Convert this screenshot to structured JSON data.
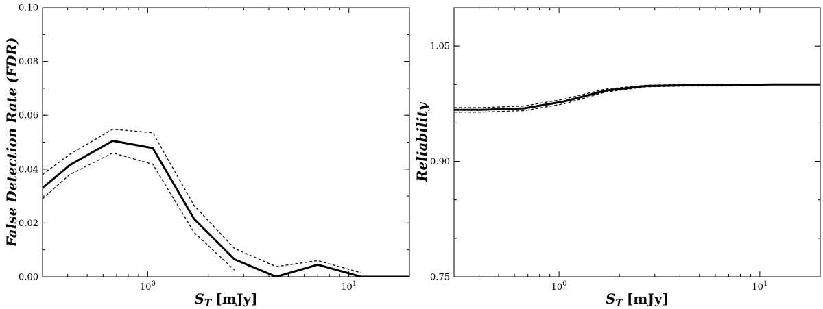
{
  "chart_data": [
    {
      "type": "line",
      "xscale": "log",
      "xlim": [
        0.3,
        20
      ],
      "ylim": [
        0.0,
        0.1
      ],
      "xlabel_symbol": "S",
      "xlabel_sub": "T",
      "xlabel_unit": "[mJy]",
      "ylabel": "False Detection Rate",
      "ylabel_abbr": "(FDR)",
      "xtick_major": [
        {
          "v": 1,
          "base": "10",
          "exp": "0"
        },
        {
          "v": 10,
          "base": "10",
          "exp": "1"
        }
      ],
      "ytick_major": [
        {
          "v": 0.0,
          "label": "0.00"
        },
        {
          "v": 0.02,
          "label": "0.02"
        },
        {
          "v": 0.04,
          "label": "0.04"
        },
        {
          "v": 0.06,
          "label": "0.06"
        },
        {
          "v": 0.08,
          "label": "0.08"
        },
        {
          "v": 0.1,
          "label": "0.10"
        }
      ],
      "ytick_minor_step": 0.01,
      "x": [
        0.3,
        0.41,
        0.67,
        1.06,
        1.7,
        2.7,
        4.35,
        7.0,
        11.5,
        20.0
      ],
      "series": [
        {
          "style": "solid",
          "values": [
            0.033,
            0.0415,
            0.0505,
            0.0478,
            0.0215,
            0.0065,
            0.0,
            0.0045,
            0.0,
            0.0
          ]
        },
        {
          "style": "dashed",
          "values": [
            0.038,
            0.0455,
            0.0548,
            0.0535,
            0.0265,
            0.0105,
            0.0038,
            0.006,
            0.0015,
            null
          ]
        },
        {
          "style": "dashed",
          "values": [
            0.029,
            0.038,
            0.046,
            0.0418,
            0.0165,
            0.0025,
            null,
            0.003,
            null,
            null
          ]
        }
      ]
    },
    {
      "type": "line",
      "xscale": "log",
      "xlim": [
        0.3,
        20
      ],
      "ylim": [
        0.75,
        1.1
      ],
      "xlabel_symbol": "S",
      "xlabel_sub": "T",
      "xlabel_unit": "[mJy]",
      "ylabel": "Reliability",
      "xtick_major": [
        {
          "v": 1,
          "base": "10",
          "exp": "0"
        },
        {
          "v": 10,
          "base": "10",
          "exp": "1"
        }
      ],
      "ytick_major": [
        {
          "v": 0.75,
          "label": "0.75"
        },
        {
          "v": 0.9,
          "label": "0.90"
        },
        {
          "v": 1.05,
          "label": "1.05"
        }
      ],
      "ytick_minor_step": 0.05,
      "x": [
        0.3,
        0.41,
        0.67,
        1.06,
        1.7,
        2.7,
        4.35,
        7.0,
        11.5,
        20.0
      ],
      "series": [
        {
          "style": "solid",
          "values": [
            0.967,
            0.967,
            0.969,
            0.978,
            0.992,
            0.998,
            0.999,
            0.999,
            1.0,
            1.0
          ]
        },
        {
          "style": "dashed",
          "values": [
            0.97,
            0.97,
            0.972,
            0.981,
            0.994,
            0.999,
            1.0,
            1.0,
            1.0,
            1.0
          ]
        },
        {
          "style": "dashed",
          "values": [
            0.964,
            0.964,
            0.966,
            0.975,
            0.99,
            0.997,
            0.998,
            0.998,
            1.0,
            1.0
          ]
        }
      ]
    }
  ]
}
